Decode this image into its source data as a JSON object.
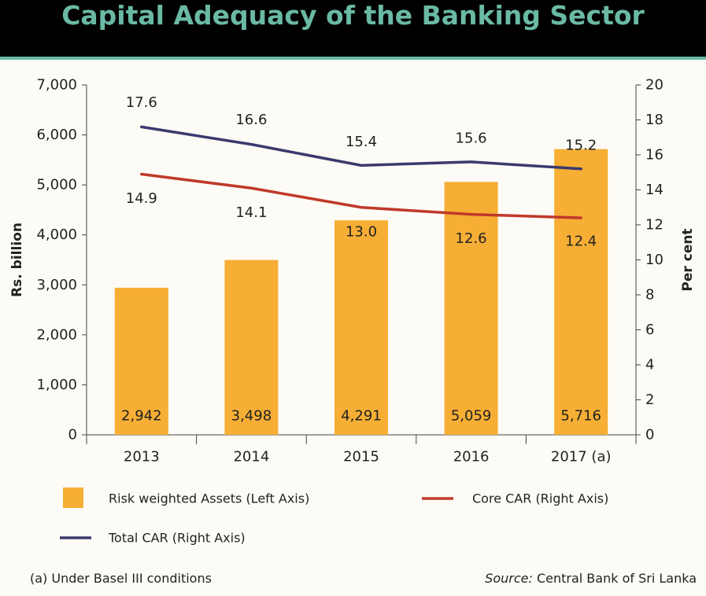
{
  "title": "Capital Adequacy of the Banking Sector",
  "footnote": "(a) Under Basel III conditions",
  "source_label": "Source:",
  "source_text": "Central Bank of Sri Lanka",
  "colors": {
    "bar": "#f6ae35",
    "core_car": "#c0392b",
    "total_car": "#3b3a6e",
    "title": "#6ab9a4"
  },
  "chart_data": {
    "type": "bar",
    "categories": [
      "2013",
      "2014",
      "2015",
      "2016",
      "2017 (a)"
    ],
    "series": [
      {
        "name": "Risk weighted Assets (Left Axis)",
        "type": "bar",
        "axis": "left",
        "values": [
          2942,
          3498,
          4291,
          5059,
          5716
        ],
        "labels": [
          "2,942",
          "3,498",
          "4,291",
          "5,059",
          "5,716"
        ]
      },
      {
        "name": "Core CAR (Right Axis)",
        "type": "line",
        "axis": "right",
        "values": [
          14.9,
          14.1,
          13.0,
          12.6,
          12.4
        ],
        "labels": [
          "14.9",
          "14.1",
          "13.0",
          "12.6",
          "12.4"
        ]
      },
      {
        "name": "Total CAR (Right Axis)",
        "type": "line",
        "axis": "right",
        "values": [
          17.6,
          16.6,
          15.4,
          15.6,
          15.2
        ],
        "labels": [
          "17.6",
          "16.6",
          "15.4",
          "15.6",
          "15.2"
        ]
      }
    ],
    "ylabel": "Rs. billion",
    "y2label": "Per cent",
    "ylim": [
      0,
      7000
    ],
    "y2lim": [
      0,
      20
    ],
    "yticks": [
      "0",
      "1,000",
      "2,000",
      "3,000",
      "4,000",
      "5,000",
      "6,000",
      "7,000"
    ],
    "y2ticks": [
      "0",
      "2",
      "4",
      "6",
      "8",
      "10",
      "12",
      "14",
      "16",
      "18",
      "20"
    ],
    "legend": "bottom"
  }
}
